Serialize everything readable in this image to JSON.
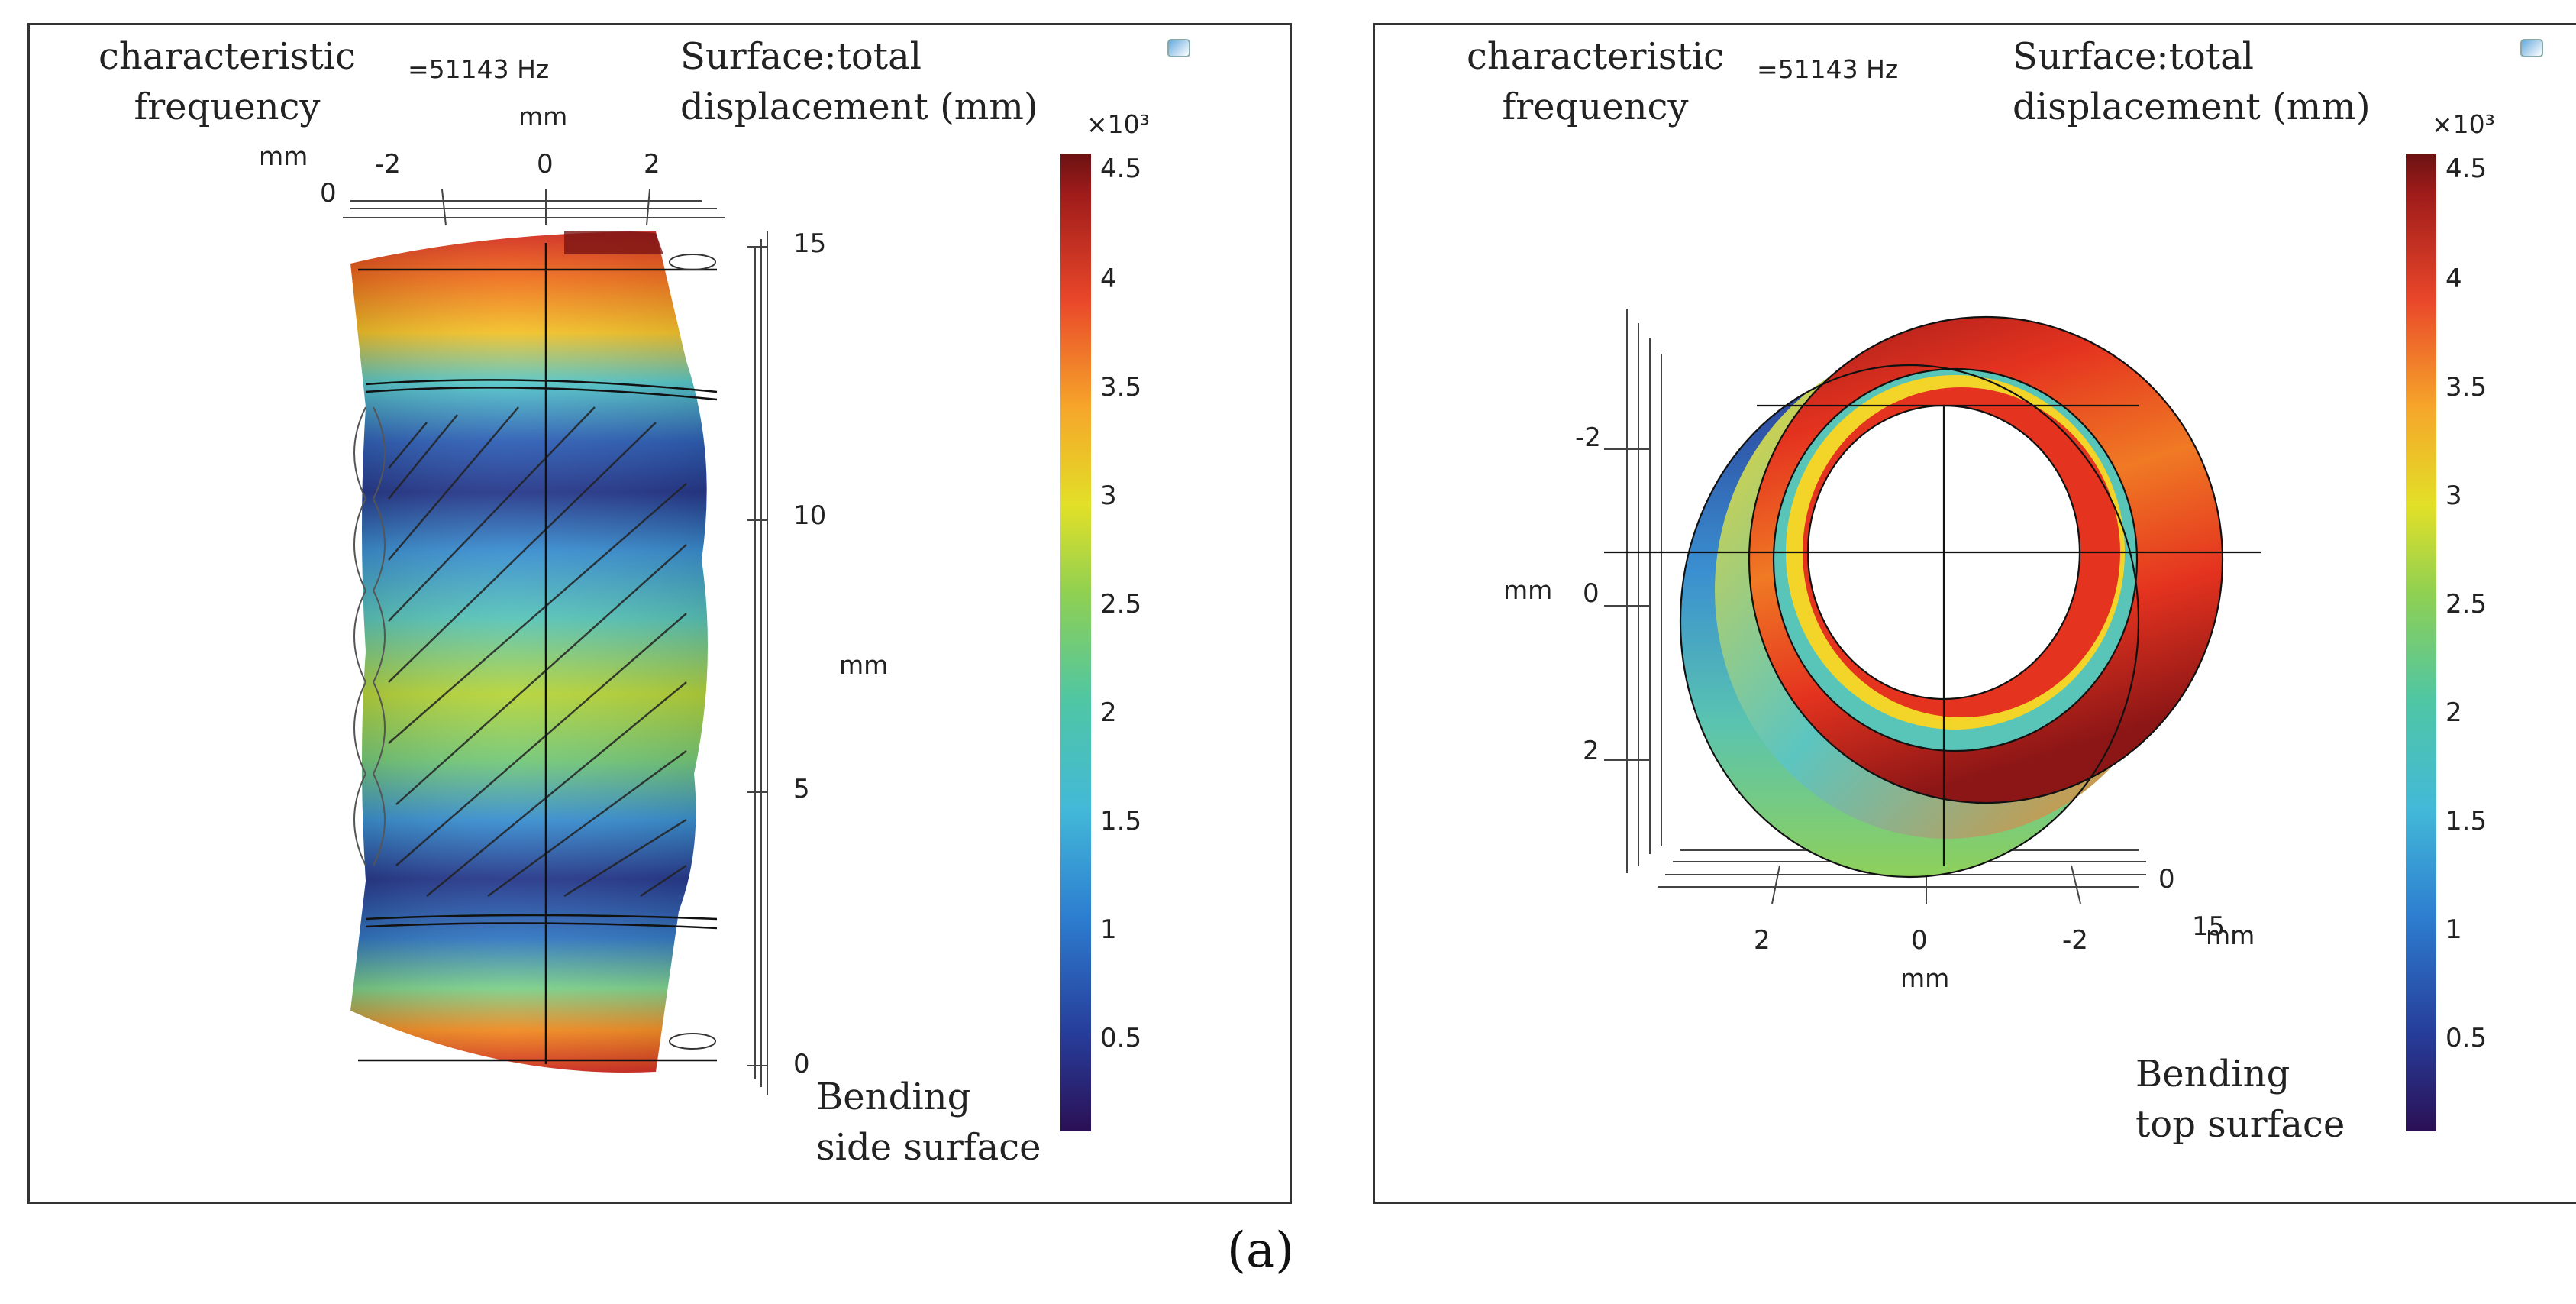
{
  "panels": [
    {
      "freq_label": "characteristic\nfrequency",
      "freq_value": "=51143 Hz",
      "surface_label": "Surface:total\ndisplacement (mm)",
      "scale_label": "×10³",
      "unit_mm": "mm",
      "x_ticks": [
        "-2",
        "0",
        "2"
      ],
      "y_tick_top": "0",
      "z_ticks": [
        "15",
        "10",
        "5",
        "0"
      ],
      "colorbar_ticks": [
        "4.5",
        "4",
        "3.5",
        "3",
        "2.5",
        "2",
        "1.5",
        "1",
        "0.5"
      ],
      "caption": "Bending\nside surface"
    },
    {
      "freq_label": "characteristic\nfrequency",
      "freq_value": "=51143 Hz",
      "surface_label": "Surface:total\ndisplacement (mm)",
      "scale_label": "×10³",
      "unit_mm": "mm",
      "y_ticks": [
        "-2",
        "0",
        "2"
      ],
      "x_ticks": [
        "2",
        "0",
        "-2"
      ],
      "z_ticks": [
        "0",
        "15"
      ],
      "colorbar_ticks": [
        "4.5",
        "4",
        "3.5",
        "3",
        "2.5",
        "2",
        "1.5",
        "1",
        "0.5"
      ],
      "caption": "Bending\ntop surface"
    }
  ],
  "figure_label": "(a)"
}
